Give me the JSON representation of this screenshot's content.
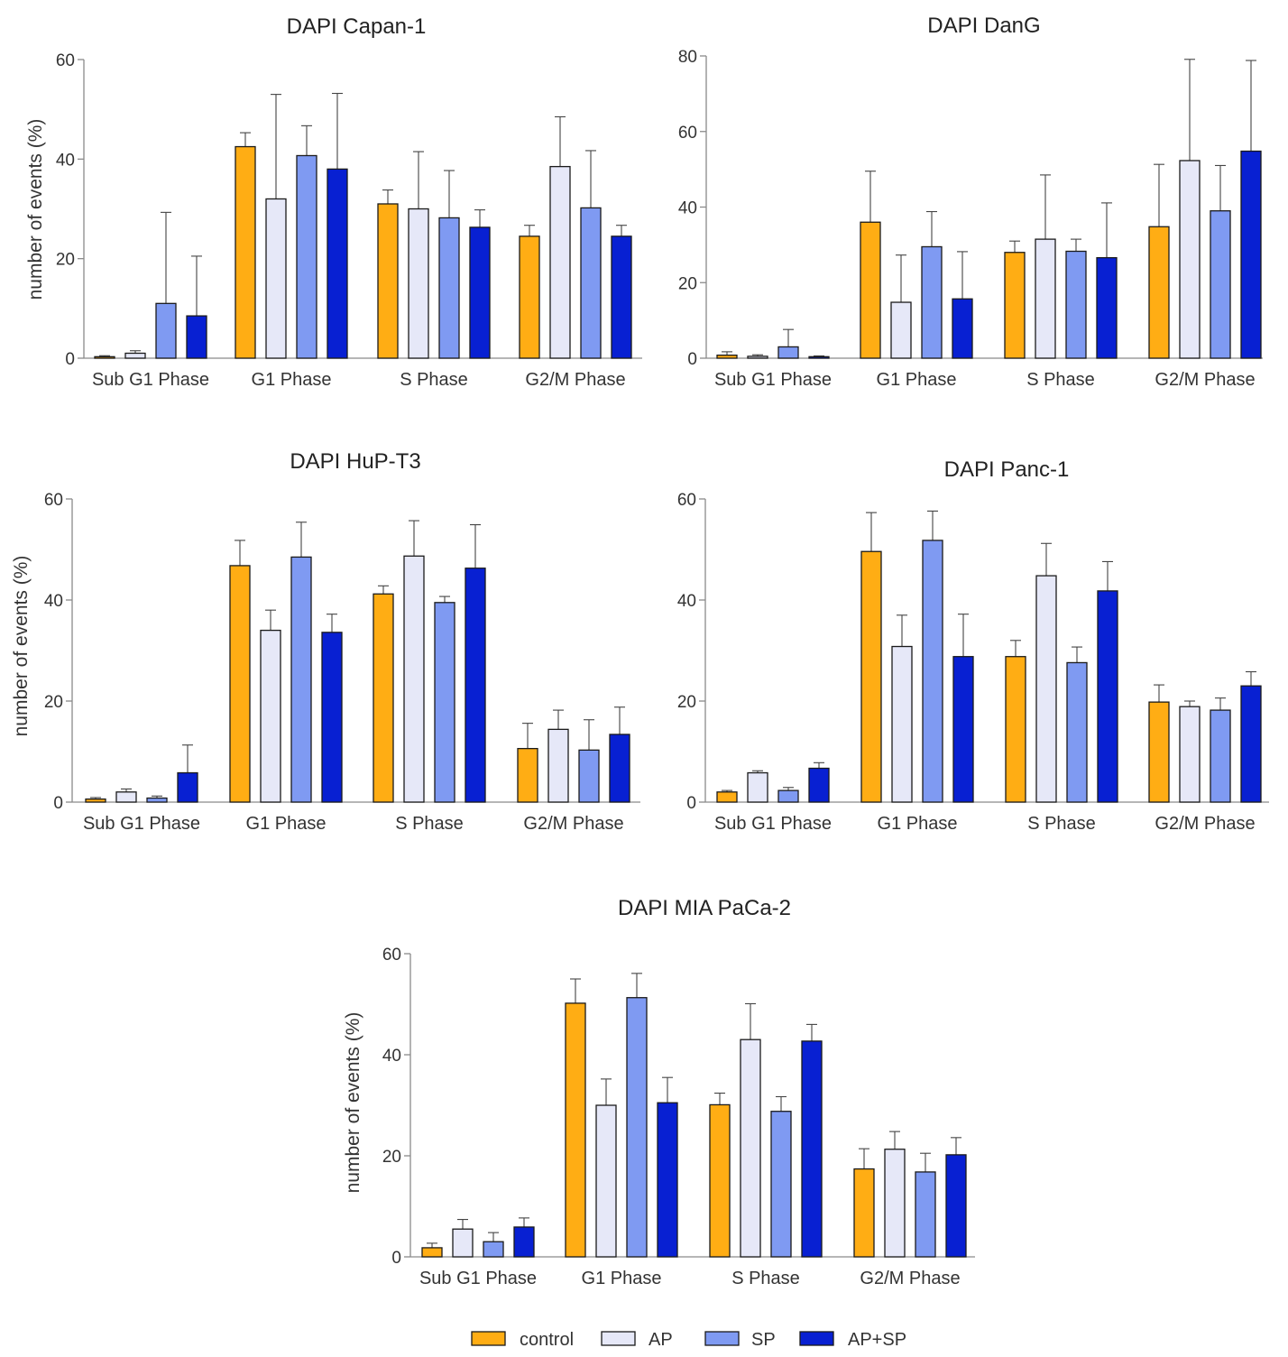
{
  "series_names": [
    "control",
    "AP",
    "SP",
    "AP+SP"
  ],
  "series_colors": [
    "#FFAD14",
    "#E6E8F8",
    "#7F9AF2",
    "#0820D2"
  ],
  "chart_data": [
    {
      "type": "bar",
      "title": "DAPI Capan-1",
      "ylabel": "number of events (%)",
      "ylim": [
        0,
        60
      ],
      "yticks": [
        0,
        20,
        40,
        60
      ],
      "categories": [
        "Sub G1 Phase",
        "G1 Phase",
        "S Phase",
        "G2/M Phase"
      ],
      "series": [
        {
          "name": "control",
          "values": [
            0.3,
            42.5,
            31,
            24.5
          ],
          "errors": [
            0.2,
            2.8,
            2.8,
            2.2
          ]
        },
        {
          "name": "AP",
          "values": [
            1.0,
            32,
            30,
            38.5
          ],
          "errors": [
            0.5,
            21,
            11.5,
            10
          ]
        },
        {
          "name": "SP",
          "values": [
            11,
            40.7,
            28.2,
            30.2
          ],
          "errors": [
            18.3,
            6,
            9.5,
            11.5
          ]
        },
        {
          "name": "AP+SP",
          "values": [
            8.5,
            38,
            26.3,
            24.5
          ],
          "errors": [
            12,
            15.2,
            3.5,
            2.2
          ]
        }
      ]
    },
    {
      "type": "bar",
      "title": "DAPI DanG",
      "ylabel": "",
      "ylim": [
        0,
        80
      ],
      "yticks": [
        0,
        20,
        40,
        60,
        80
      ],
      "categories": [
        "Sub G1 Phase",
        "G1 Phase",
        "S Phase",
        "G2/M Phase"
      ],
      "series": [
        {
          "name": "control",
          "values": [
            0.8,
            36,
            28,
            34.8
          ],
          "errors": [
            0.9,
            13.5,
            3,
            16.5
          ]
        },
        {
          "name": "AP",
          "values": [
            0.5,
            14.8,
            31.5,
            52.3
          ],
          "errors": [
            0.4,
            12.5,
            17,
            26.8
          ]
        },
        {
          "name": "SP",
          "values": [
            3,
            29.5,
            28.3,
            39
          ],
          "errors": [
            4.6,
            9.3,
            3.2,
            12
          ]
        },
        {
          "name": "AP+SP",
          "values": [
            0.4,
            15.7,
            26.6,
            54.8
          ],
          "errors": [
            0.2,
            12.5,
            14.5,
            24
          ]
        }
      ]
    },
    {
      "type": "bar",
      "title": "DAPI HuP-T3",
      "ylabel": "number of events (%)",
      "ylim": [
        0,
        60
      ],
      "yticks": [
        0,
        20,
        40,
        60
      ],
      "categories": [
        "Sub G1 Phase",
        "G1 Phase",
        "S Phase",
        "G2/M Phase"
      ],
      "series": [
        {
          "name": "control",
          "values": [
            0.6,
            46.8,
            41.2,
            10.6
          ],
          "errors": [
            0.3,
            5,
            1.6,
            5
          ]
        },
        {
          "name": "AP",
          "values": [
            2.0,
            34,
            48.7,
            14.4
          ],
          "errors": [
            0.6,
            4,
            7,
            3.8
          ]
        },
        {
          "name": "SP",
          "values": [
            0.8,
            48.5,
            39.5,
            10.3
          ],
          "errors": [
            0.4,
            6.9,
            1.2,
            6
          ]
        },
        {
          "name": "AP+SP",
          "values": [
            5.8,
            33.6,
            46.3,
            13.4
          ],
          "errors": [
            5.5,
            3.6,
            8.6,
            5.4
          ]
        }
      ]
    },
    {
      "type": "bar",
      "title": "DAPI Panc-1",
      "ylabel": "",
      "ylim": [
        0,
        60
      ],
      "yticks": [
        0,
        20,
        40,
        60
      ],
      "categories": [
        "Sub G1 Phase",
        "G1 Phase",
        "S Phase",
        "G2/M Phase"
      ],
      "series": [
        {
          "name": "control",
          "values": [
            2.0,
            49.6,
            28.8,
            19.8
          ],
          "errors": [
            0.3,
            7.7,
            3.2,
            3.4
          ]
        },
        {
          "name": "AP",
          "values": [
            5.8,
            30.8,
            44.8,
            18.9
          ],
          "errors": [
            0.4,
            6.2,
            6.4,
            1.1
          ]
        },
        {
          "name": "SP",
          "values": [
            2.3,
            51.8,
            27.6,
            18.2
          ],
          "errors": [
            0.6,
            5.8,
            3.1,
            2.4
          ]
        },
        {
          "name": "AP+SP",
          "values": [
            6.7,
            28.8,
            41.8,
            23.0
          ],
          "errors": [
            1.1,
            8.4,
            5.8,
            2.8
          ]
        }
      ]
    },
    {
      "type": "bar",
      "title": "DAPI MIA PaCa-2",
      "ylabel": "number of events (%)",
      "ylim": [
        0,
        60
      ],
      "yticks": [
        0,
        20,
        40,
        60
      ],
      "categories": [
        "Sub G1 Phase",
        "G1 Phase",
        "S Phase",
        "G2/M Phase"
      ],
      "series": [
        {
          "name": "control",
          "values": [
            1.8,
            50.2,
            30.1,
            17.4
          ],
          "errors": [
            0.9,
            4.8,
            2.3,
            4.0
          ]
        },
        {
          "name": "AP",
          "values": [
            5.5,
            30,
            43,
            21.3
          ],
          "errors": [
            1.9,
            5.2,
            7.1,
            3.5
          ]
        },
        {
          "name": "SP",
          "values": [
            3.0,
            51.3,
            28.8,
            16.8
          ],
          "errors": [
            1.8,
            4.8,
            2.9,
            3.7
          ]
        },
        {
          "name": "AP+SP",
          "values": [
            5.9,
            30.5,
            42.7,
            20.2
          ],
          "errors": [
            1.8,
            5.0,
            3.3,
            3.4
          ]
        }
      ]
    }
  ]
}
